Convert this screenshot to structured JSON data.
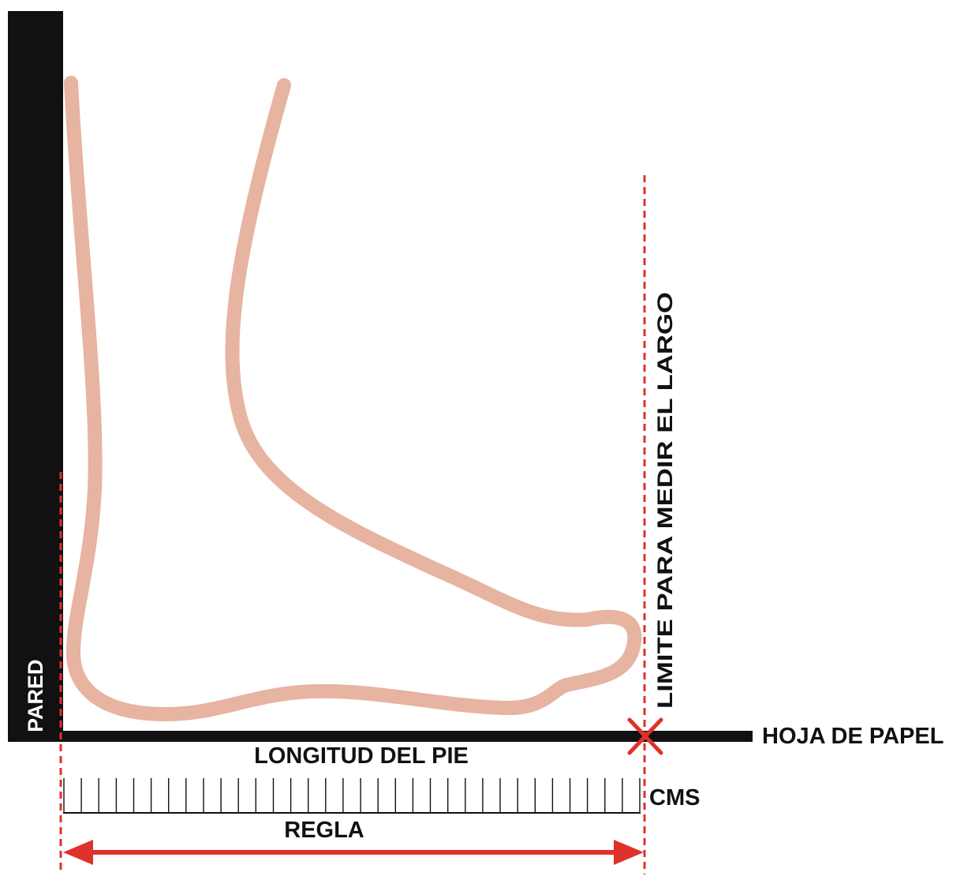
{
  "labels": {
    "wall": "PARED",
    "limit": "LIMITE PARA MEDIR EL LARGO",
    "paper": "HOJA DE PAPEL",
    "foot_length": "LONGITUD DEL PIE",
    "units": "CMS",
    "ruler": "REGLA"
  },
  "ruler": {
    "divisions": 33
  },
  "colors": {
    "wall": "#111111",
    "foot_outline": "#e6b4a0",
    "guide_dashed": "#e0312b",
    "arrow": "#e0312b",
    "mark_x": "#e0312b",
    "text": "#111111"
  },
  "icons": [
    "x-mark-icon",
    "double-arrow-icon"
  ]
}
